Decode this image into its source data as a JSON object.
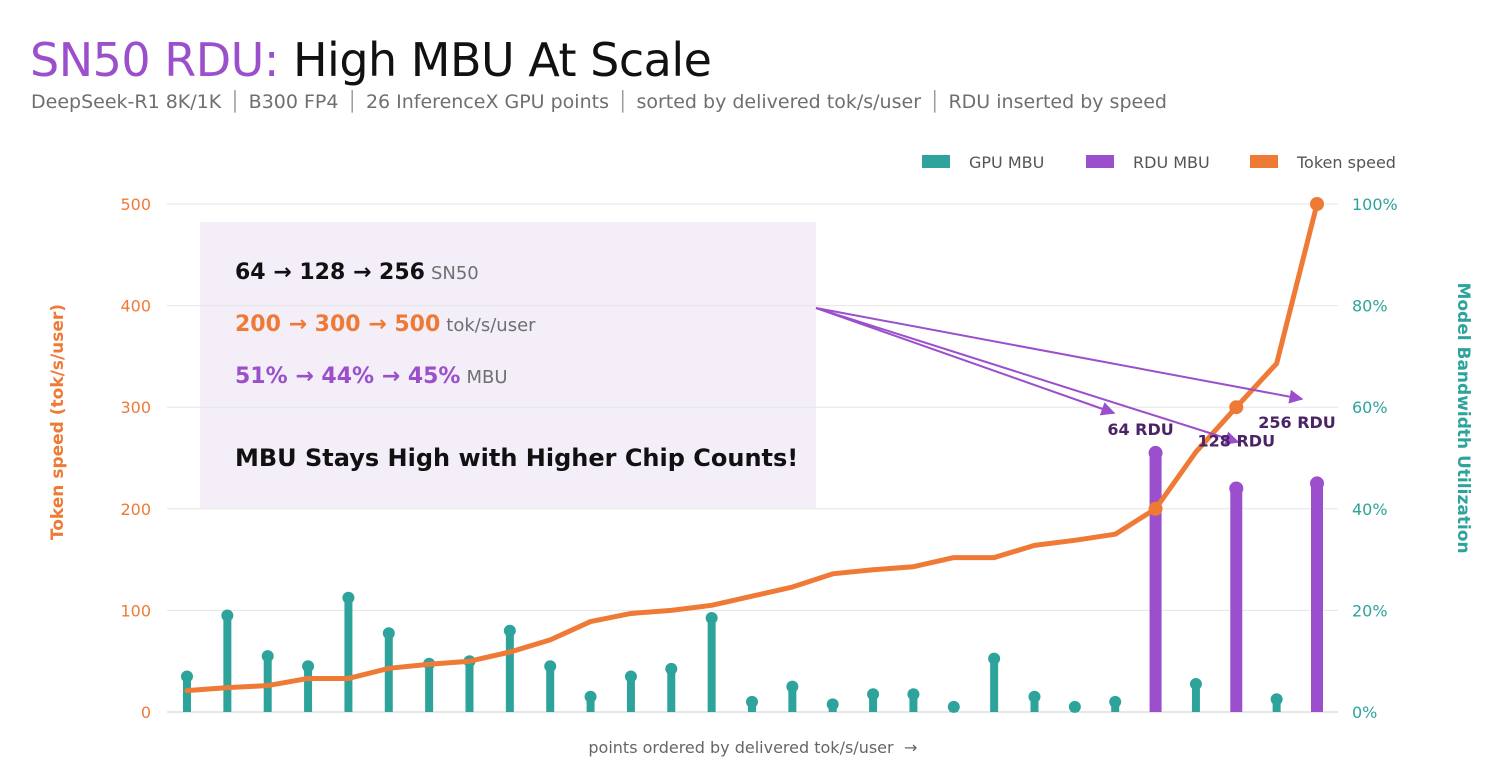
{
  "header": {
    "title_brand": "SN50 RDU:",
    "title_rest": "High MBU At Scale",
    "subtitle_parts": [
      "DeepSeek-R1 8K/1K",
      "B300 FP4",
      "26 InferenceX GPU points",
      "sorted by delivered tok/s/user",
      "RDU inserted by speed"
    ]
  },
  "annotation": {
    "chips": "64 → 128 → 256",
    "chips_unit": "SN50",
    "speed": "200 → 300 → 500",
    "speed_unit": "tok/s/user",
    "mbu": "51% → 44% → 45%",
    "mbu_unit": "MBU",
    "headline": "MBU Stays High with Higher Chip Counts!"
  },
  "colors": {
    "gpu": "#2ea39b",
    "rdu": "#9b4fcc",
    "speed": "#ef7a36",
    "rdu_label": "#4b2466"
  },
  "chart_data": {
    "type": "bar",
    "xlabel": "points ordered by delivered tok/s/user",
    "xlabel_arrow": "→",
    "ylabel_left": "Token speed (tok/s/user)",
    "ylabel_right": "Model Bandwidth Utilization",
    "ylim_left": [
      0,
      500
    ],
    "ylim_right": [
      0,
      100
    ],
    "left_ticks": [
      "0",
      "100",
      "200",
      "300",
      "400",
      "500"
    ],
    "right_ticks": [
      "0%",
      "20%",
      "40%",
      "60%",
      "80%",
      "100%"
    ],
    "legend": [
      "GPU MBU",
      "RDU MBU",
      "Token speed"
    ],
    "legend_position": "top-right",
    "grid": true,
    "points": [
      {
        "kind": "gpu",
        "mbu": 7,
        "speed": 21
      },
      {
        "kind": "gpu",
        "mbu": 19,
        "speed": 24
      },
      {
        "kind": "gpu",
        "mbu": 11,
        "speed": 26
      },
      {
        "kind": "gpu",
        "mbu": 9,
        "speed": 33
      },
      {
        "kind": "gpu",
        "mbu": 22.5,
        "speed": 33
      },
      {
        "kind": "gpu",
        "mbu": 15.5,
        "speed": 43
      },
      {
        "kind": "gpu",
        "mbu": 9.5,
        "speed": 47
      },
      {
        "kind": "gpu",
        "mbu": 10,
        "speed": 50
      },
      {
        "kind": "gpu",
        "mbu": 16,
        "speed": 59
      },
      {
        "kind": "gpu",
        "mbu": 9,
        "speed": 71
      },
      {
        "kind": "gpu",
        "mbu": 3,
        "speed": 89
      },
      {
        "kind": "gpu",
        "mbu": 7,
        "speed": 97
      },
      {
        "kind": "gpu",
        "mbu": 8.5,
        "speed": 100
      },
      {
        "kind": "gpu",
        "mbu": 18.5,
        "speed": 105
      },
      {
        "kind": "gpu",
        "mbu": 2,
        "speed": 114
      },
      {
        "kind": "gpu",
        "mbu": 5,
        "speed": 123
      },
      {
        "kind": "gpu",
        "mbu": 1.5,
        "speed": 136
      },
      {
        "kind": "gpu",
        "mbu": 3.5,
        "speed": 140
      },
      {
        "kind": "gpu",
        "mbu": 3.5,
        "speed": 143
      },
      {
        "kind": "gpu",
        "mbu": 1,
        "speed": 152
      },
      {
        "kind": "gpu",
        "mbu": 10.5,
        "speed": 152
      },
      {
        "kind": "gpu",
        "mbu": 3,
        "speed": 164
      },
      {
        "kind": "gpu",
        "mbu": 1,
        "speed": 169
      },
      {
        "kind": "gpu",
        "mbu": 2,
        "speed": 175
      },
      {
        "kind": "rdu",
        "mbu": 51,
        "speed": 200,
        "label": "64 RDU"
      },
      {
        "kind": "gpu",
        "mbu": 5.5,
        "speed": 256
      },
      {
        "kind": "rdu",
        "mbu": 44,
        "speed": 300,
        "label": "128 RDU"
      },
      {
        "kind": "gpu",
        "mbu": 2.5,
        "speed": 343
      },
      {
        "kind": "rdu",
        "mbu": 45,
        "speed": 500,
        "label": "256 RDU"
      }
    ]
  }
}
